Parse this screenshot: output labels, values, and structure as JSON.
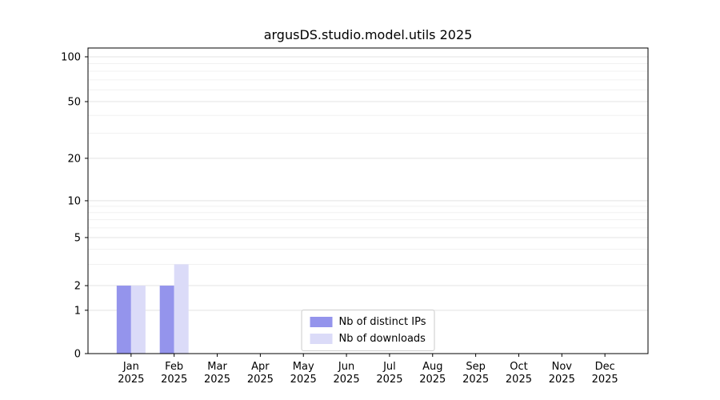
{
  "chart_data": {
    "type": "bar",
    "title": "argusDS.studio.model.utils 2025",
    "categories": [
      "Jan\n2025",
      "Feb\n2025",
      "Mar\n2025",
      "Apr\n2025",
      "May\n2025",
      "Jun\n2025",
      "Jul\n2025",
      "Aug\n2025",
      "Sep\n2025",
      "Oct\n2025",
      "Nov\n2025",
      "Dec\n2025"
    ],
    "series": [
      {
        "name": "Nb of distinct IPs",
        "color": "#9494ec",
        "values": [
          2,
          2,
          0,
          0,
          0,
          0,
          0,
          0,
          0,
          0,
          0,
          0
        ]
      },
      {
        "name": "Nb of downloads",
        "color": "#dbdbf8",
        "values": [
          2,
          3,
          0,
          0,
          0,
          0,
          0,
          0,
          0,
          0,
          0,
          0
        ]
      }
    ],
    "yticks": [
      0,
      1,
      2,
      5,
      10,
      20,
      50,
      100
    ],
    "ylim": [
      0,
      100
    ],
    "yscale": "symlog",
    "grid": true,
    "legend_position": "lower center",
    "xlabel": "",
    "ylabel": ""
  }
}
